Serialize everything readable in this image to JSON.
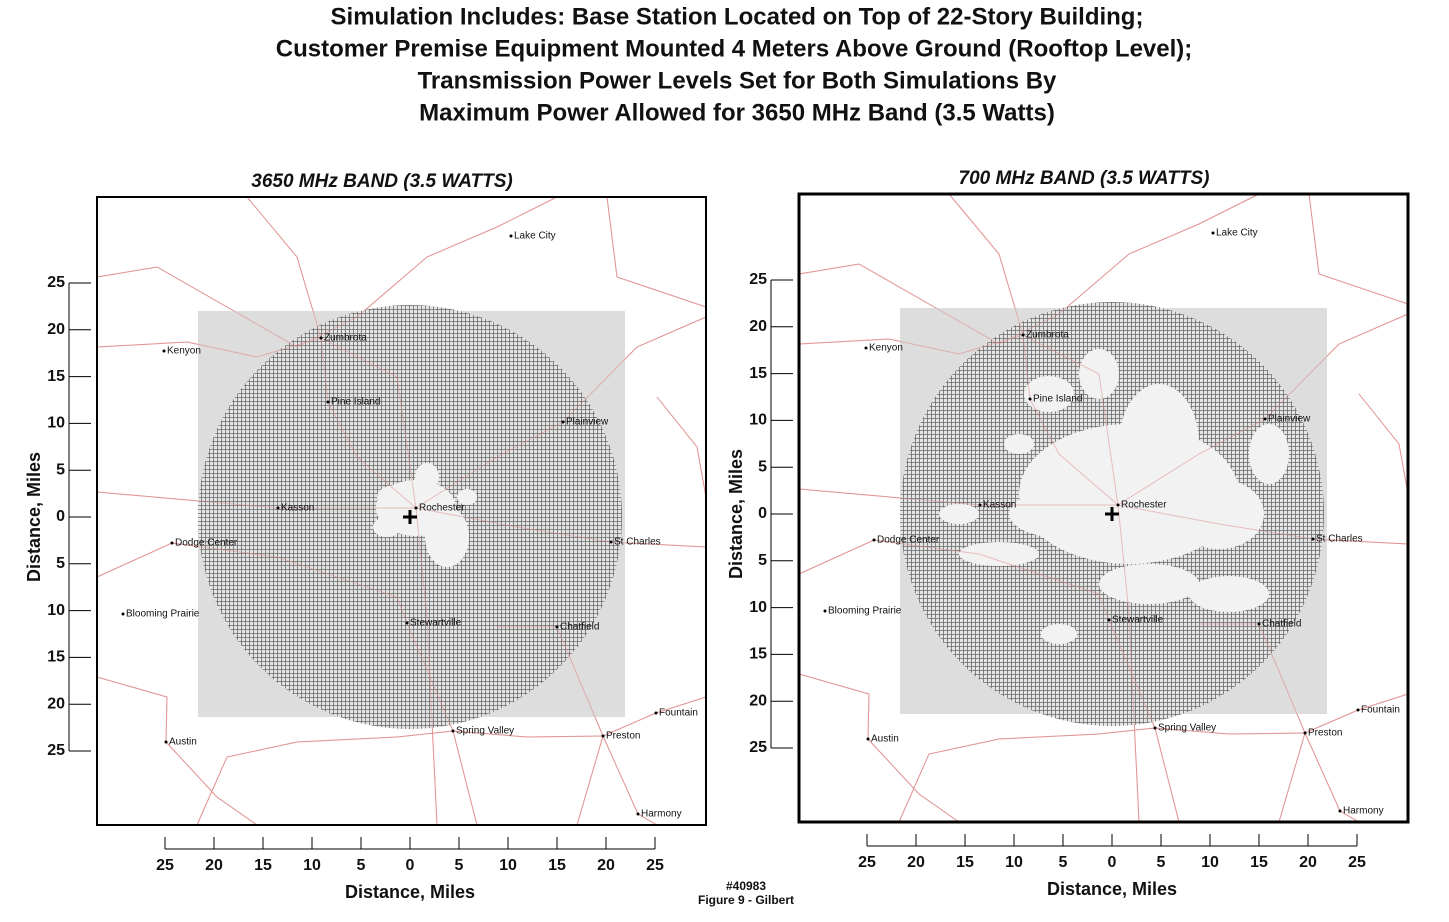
{
  "title": [
    "Simulation Includes:  Base  Station Located on Top of 22-Story Building;",
    "Customer Premise Equipment Mounted 4 Meters Above Ground (Rooftop Level);",
    "Transmission Power Levels Set for Both Simulations By",
    "Maximum Power Allowed for 3650 MHz Band (3.5 Watts)"
  ],
  "panels": [
    {
      "title": "3650 MHz  BAND  (3.5 WATTS)",
      "y_label": "Distance,  Miles",
      "x_label": "Distance,  Miles",
      "y_ticks": [
        25,
        20,
        15,
        10,
        5,
        0,
        5,
        10,
        15,
        20,
        25
      ],
      "x_ticks": [
        25,
        20,
        15,
        10,
        5,
        0,
        5,
        10,
        15,
        20,
        25
      ],
      "towns": [
        "Lake City",
        "Zumbrota",
        "Kenyon",
        "Pine Island",
        "Plainview",
        "Kasson",
        "Rochester",
        "Dodge Center",
        "St Charles",
        "Blooming Prairie",
        "Stewartville",
        "Chatfield",
        "Fountain",
        "Spring Valley",
        "Preston",
        "Austin",
        "Harmony"
      ]
    },
    {
      "title": "700 MHz  BAND  (3.5 WATTS)",
      "y_label": "Distance,  Miles",
      "x_label": "Distance,  Miles",
      "y_ticks": [
        25,
        20,
        15,
        10,
        5,
        0,
        5,
        10,
        15,
        20,
        25
      ],
      "x_ticks": [
        25,
        20,
        15,
        10,
        5,
        0,
        5,
        10,
        15,
        20,
        25
      ],
      "towns": [
        "Lake City",
        "Zumbrota",
        "Kenyon",
        "Pine Island",
        "Plainview",
        "Kasson",
        "Rochester",
        "Dodge Center",
        "St Charles",
        "Blooming Prairie",
        "Stewartville",
        "Chatfield",
        "Fountain",
        "Spring Valley",
        "Preston",
        "Austin",
        "Harmony"
      ]
    }
  ],
  "footer": {
    "id": "#40983",
    "caption": "Figure 9 - Gilbert"
  }
}
